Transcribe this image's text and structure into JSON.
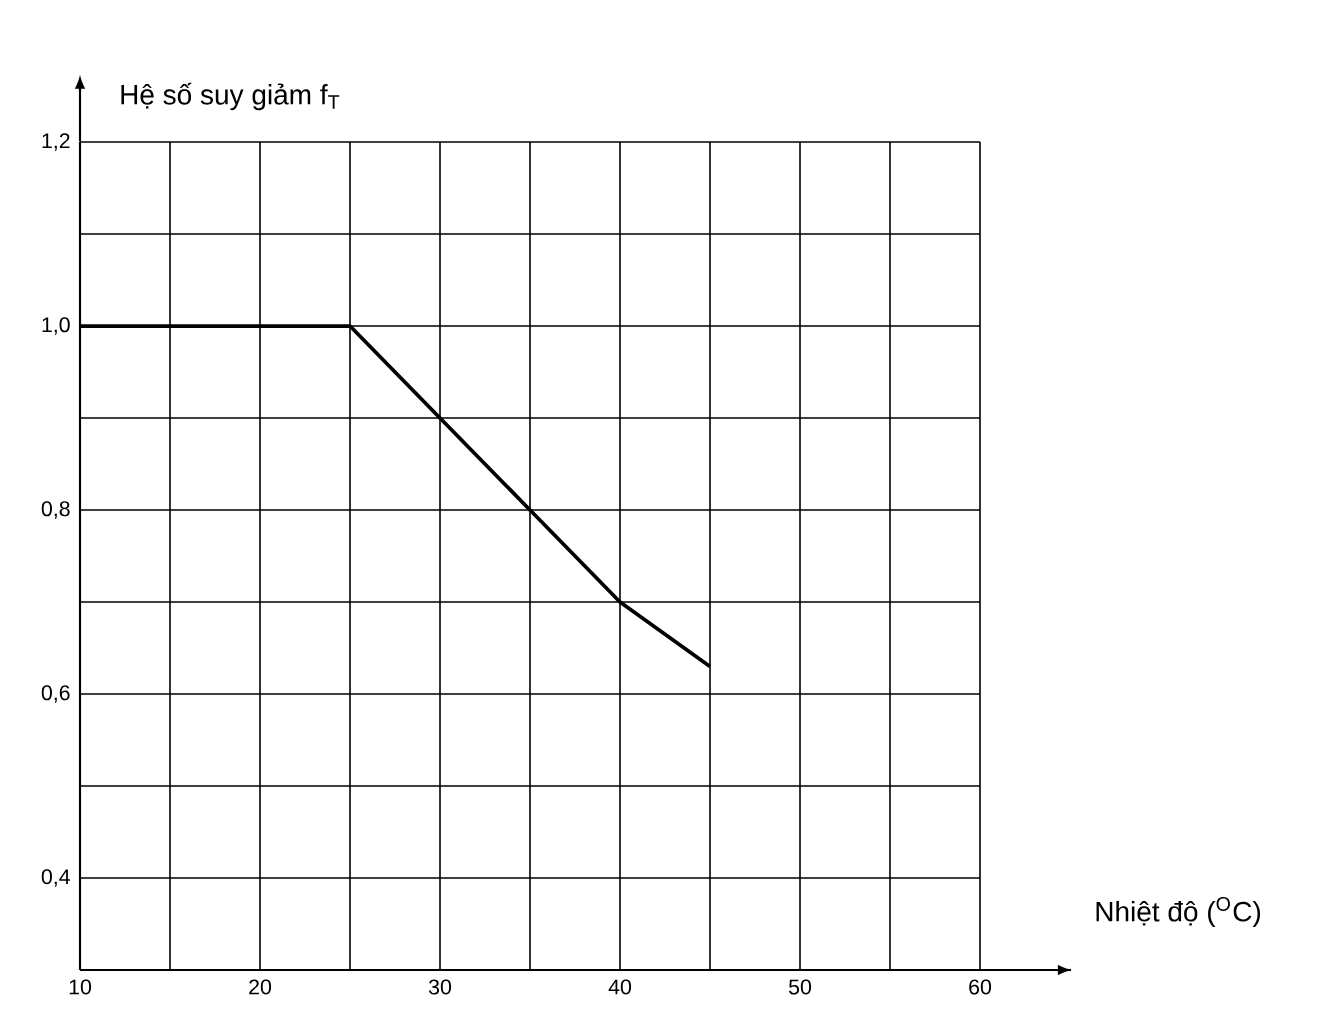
{
  "chart_data": {
    "type": "line",
    "xlabel": "Nhiệt độ ($^{O}$C)",
    "ylabel": "Hệ số suy giảm f$_{T}$",
    "x": [
      10,
      25,
      30,
      35,
      40,
      45
    ],
    "series": [
      {
        "color": "#000000",
        "values": [
          1.0,
          1.0,
          0.9,
          0.8,
          0.7,
          0.63
        ]
      }
    ],
    "xlim": [
      10,
      65
    ],
    "xticks": [
      10,
      {
        "value": 15,
        "label": null
      },
      20,
      {
        "value": 25,
        "label": null
      },
      30,
      {
        "value": 35,
        "label": null
      },
      40,
      {
        "value": 45,
        "label": null
      },
      50,
      {
        "value": 55,
        "label": null
      },
      60
    ],
    "ylim": [
      0.3,
      1.2
    ],
    "yticks": [
      {
        "value": 0.4,
        "label": "0,4"
      },
      {
        "value": 0.5,
        "label": null
      },
      {
        "value": 0.6,
        "label": "0,6"
      },
      {
        "value": 0.7,
        "label": null
      },
      {
        "value": 0.8,
        "label": "0,8"
      },
      {
        "value": 0.9,
        "label": null
      },
      {
        "value": 1.0,
        "label": "1,0"
      },
      {
        "value": 1.1,
        "label": null
      },
      {
        "value": 1.2,
        "label": "1,2"
      }
    ],
    "grid": true,
    "marker": "none",
    "line_style": "solid"
  }
}
